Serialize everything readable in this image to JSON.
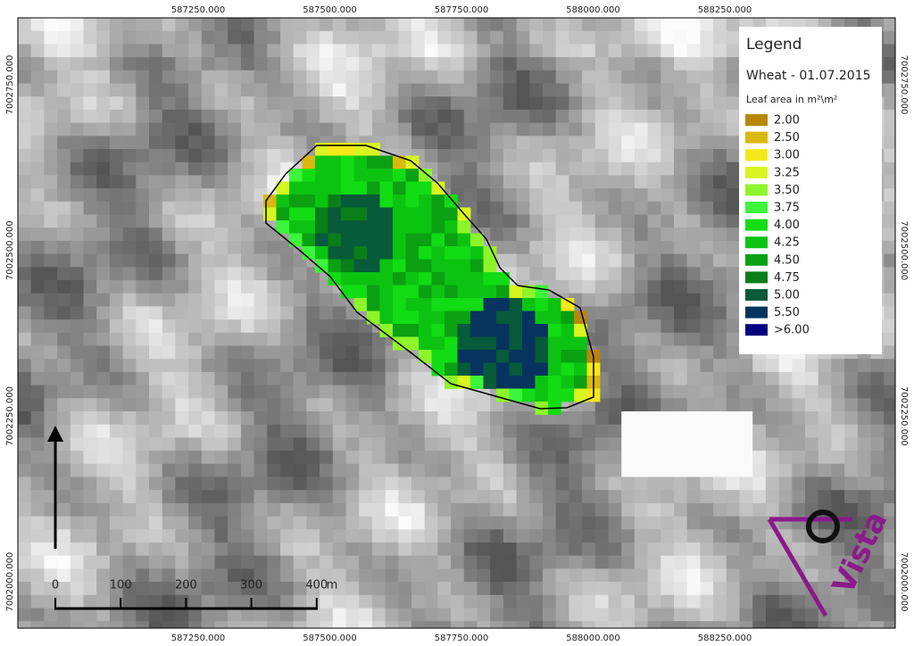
{
  "map": {
    "x_labels": [
      "587250.000",
      "587500.000",
      "587750.000",
      "588000.000",
      "588250.000"
    ],
    "y_labels": [
      "7002750.000",
      "7002500.000",
      "7002250.000",
      "7002000.000"
    ]
  },
  "legend": {
    "title": "Legend",
    "subtitle": "Wheat - 01.07.2015",
    "unit": "Leaf area in m²\\m²",
    "items": [
      {
        "label": "2.00",
        "color": "#b8860b"
      },
      {
        "label": "2.50",
        "color": "#d9b80f"
      },
      {
        "label": "3.00",
        "color": "#f5e81a"
      },
      {
        "label": "3.25",
        "color": "#d7f51f"
      },
      {
        "label": "3.50",
        "color": "#8ef52a"
      },
      {
        "label": "3.75",
        "color": "#3df53a"
      },
      {
        "label": "4.00",
        "color": "#12dc14"
      },
      {
        "label": "4.25",
        "color": "#0cc312"
      },
      {
        "label": "4.50",
        "color": "#0aa012"
      },
      {
        "label": "4.75",
        "color": "#0a7e18"
      },
      {
        "label": "5.00",
        "color": "#075a3a"
      },
      {
        "label": "5.50",
        "color": "#06345e"
      },
      {
        "label": ">6.00",
        "color": "#000080"
      }
    ]
  },
  "scale_bar": {
    "labels": [
      "0",
      "100",
      "200",
      "300",
      "400"
    ],
    "unit": "m"
  },
  "logo": {
    "text": "Vista"
  }
}
